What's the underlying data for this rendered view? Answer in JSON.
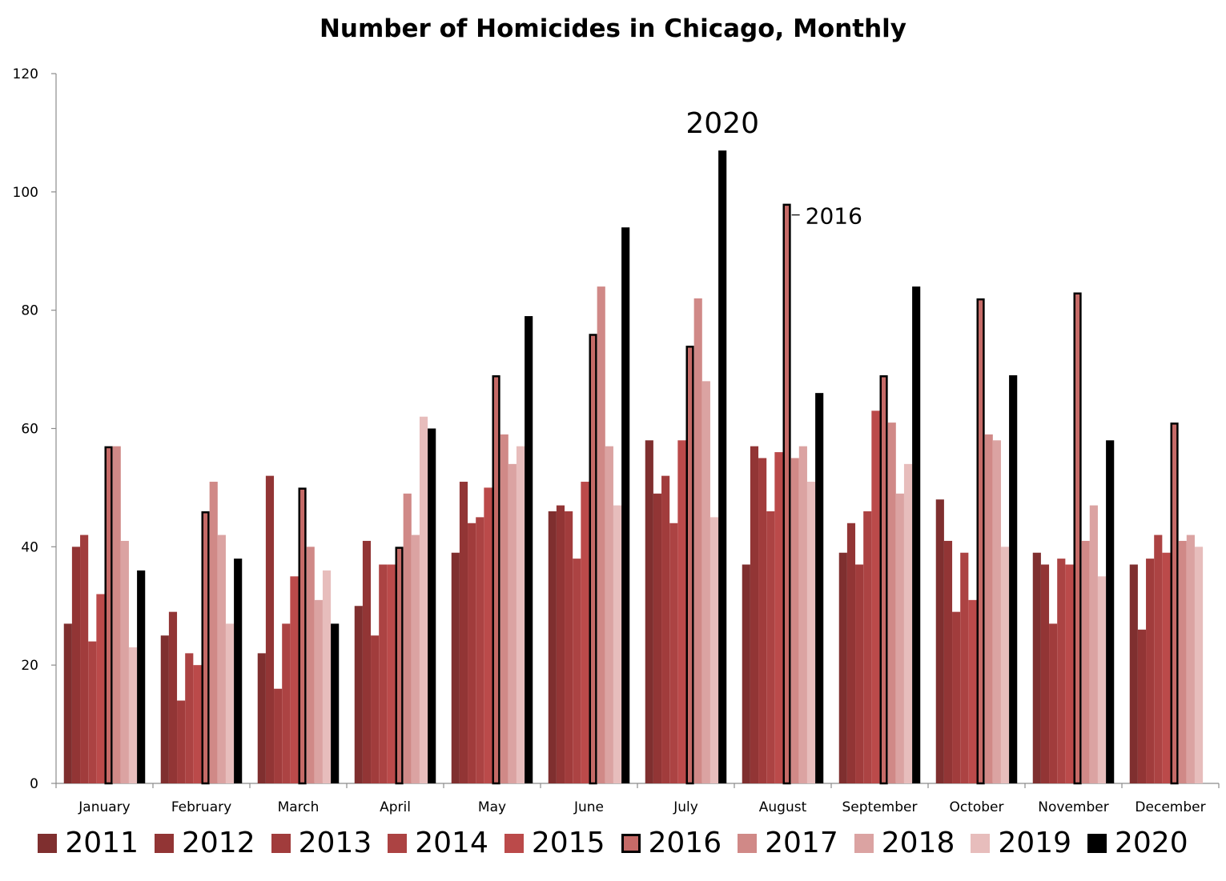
{
  "chart_data": {
    "type": "bar",
    "title": "Number of Homicides in Chicago, Monthly",
    "xlabel": "",
    "ylabel": "",
    "ylim": [
      0,
      120
    ],
    "yticks": [
      "0",
      "20",
      "40",
      "60",
      "80",
      "100",
      "120"
    ],
    "grid": false,
    "legend_position": "bottom",
    "categories": [
      "January",
      "February",
      "March",
      "April",
      "May",
      "June",
      "July",
      "August",
      "September",
      "October",
      "November",
      "December"
    ],
    "series": [
      {
        "name": "2011",
        "color": "#7f2f2f",
        "values": [
          27,
          25,
          22,
          30,
          39,
          46,
          58,
          37,
          39,
          48,
          39,
          37
        ]
      },
      {
        "name": "2012",
        "color": "#923535",
        "values": [
          40,
          29,
          52,
          41,
          51,
          47,
          49,
          57,
          44,
          41,
          37,
          26
        ]
      },
      {
        "name": "2013",
        "color": "#a13c3c",
        "values": [
          42,
          14,
          16,
          25,
          44,
          46,
          52,
          55,
          37,
          29,
          27,
          38
        ]
      },
      {
        "name": "2014",
        "color": "#ac4343",
        "values": [
          24,
          22,
          27,
          37,
          45,
          38,
          44,
          46,
          46,
          39,
          38,
          42
        ]
      },
      {
        "name": "2015",
        "color": "#bb4a4a",
        "values": [
          32,
          20,
          35,
          37,
          50,
          51,
          58,
          56,
          63,
          31,
          37,
          39
        ]
      },
      {
        "name": "2016",
        "color": "#c56a67",
        "outline": "#000000",
        "values": [
          57,
          46,
          50,
          40,
          69,
          76,
          74,
          98,
          69,
          82,
          83,
          61
        ]
      },
      {
        "name": "2017",
        "color": "#d08987",
        "values": [
          57,
          51,
          40,
          49,
          59,
          84,
          82,
          55,
          61,
          59,
          41,
          41
        ]
      },
      {
        "name": "2018",
        "color": "#dba3a2",
        "values": [
          41,
          42,
          31,
          42,
          54,
          57,
          68,
          57,
          49,
          58,
          47,
          42
        ]
      },
      {
        "name": "2019",
        "color": "#e7bdbc",
        "values": [
          23,
          27,
          36,
          62,
          57,
          47,
          45,
          51,
          54,
          40,
          35,
          40
        ]
      },
      {
        "name": "2020",
        "color": "#000000",
        "values": [
          36,
          38,
          27,
          60,
          79,
          94,
          107,
          66,
          84,
          69,
          58,
          null
        ]
      }
    ],
    "annotations": [
      {
        "text": "2020",
        "series": "2020",
        "category": "July"
      },
      {
        "text": "2016",
        "series": "2016",
        "category": "August"
      }
    ]
  }
}
